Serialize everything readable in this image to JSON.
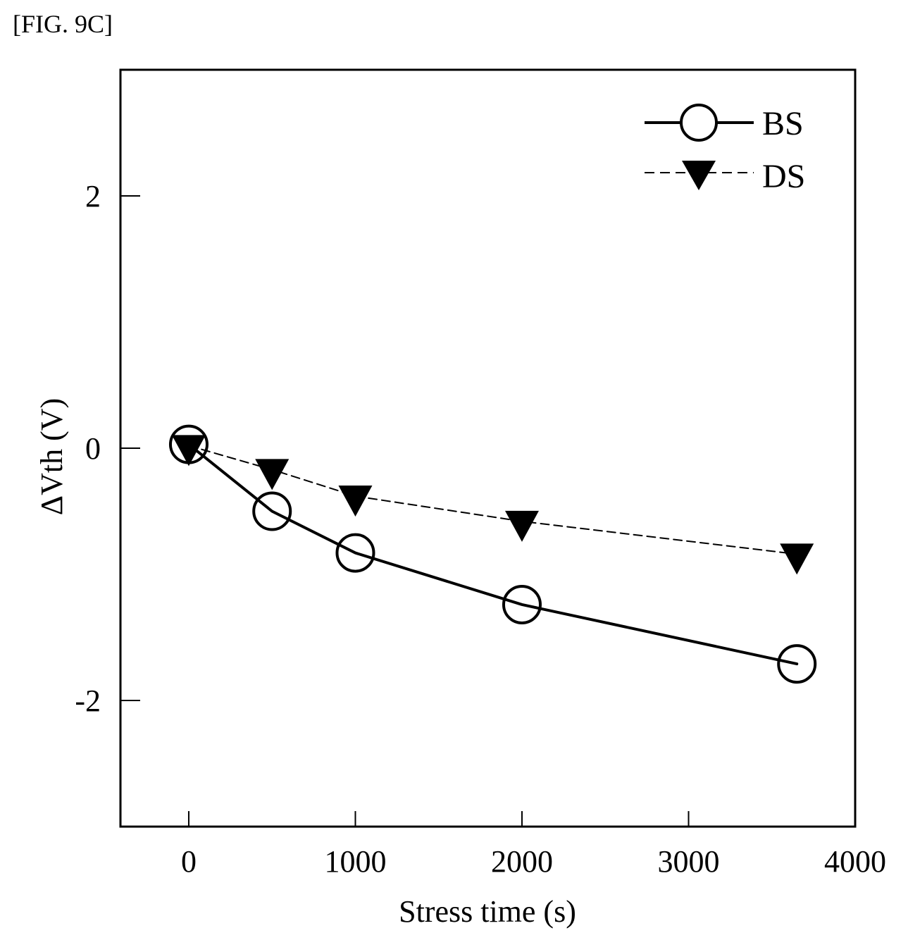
{
  "figure_label": "[FIG. 9C]",
  "chart_data": {
    "type": "line",
    "title": "",
    "xlabel": "Stress time (s)",
    "ylabel": "ΔVth (V)",
    "xlim": [
      -410,
      4000
    ],
    "ylim": [
      -3,
      3
    ],
    "xticks": [
      0,
      1000,
      2000,
      3000,
      4000
    ],
    "xtick_labels": [
      "0",
      "1000",
      "2000",
      "3000",
      "4000"
    ],
    "yticks": [
      -2,
      0,
      2
    ],
    "ytick_labels": [
      "-2",
      "0",
      "2"
    ],
    "grid": false,
    "legend_position": "top-right",
    "series": [
      {
        "name": "BS",
        "marker": "open-circle",
        "line_style": "solid",
        "color": "#000000",
        "x": [
          0,
          500,
          1000,
          2000,
          3650
        ],
        "y": [
          0.03,
          -0.5,
          -0.83,
          -1.24,
          -1.71
        ]
      },
      {
        "name": "DS",
        "marker": "filled-down-triangle",
        "line_style": "dashed",
        "color": "#000000",
        "x": [
          0,
          500,
          1000,
          2000,
          3650
        ],
        "y": [
          0.02,
          -0.17,
          -0.38,
          -0.58,
          -0.84
        ]
      }
    ]
  }
}
